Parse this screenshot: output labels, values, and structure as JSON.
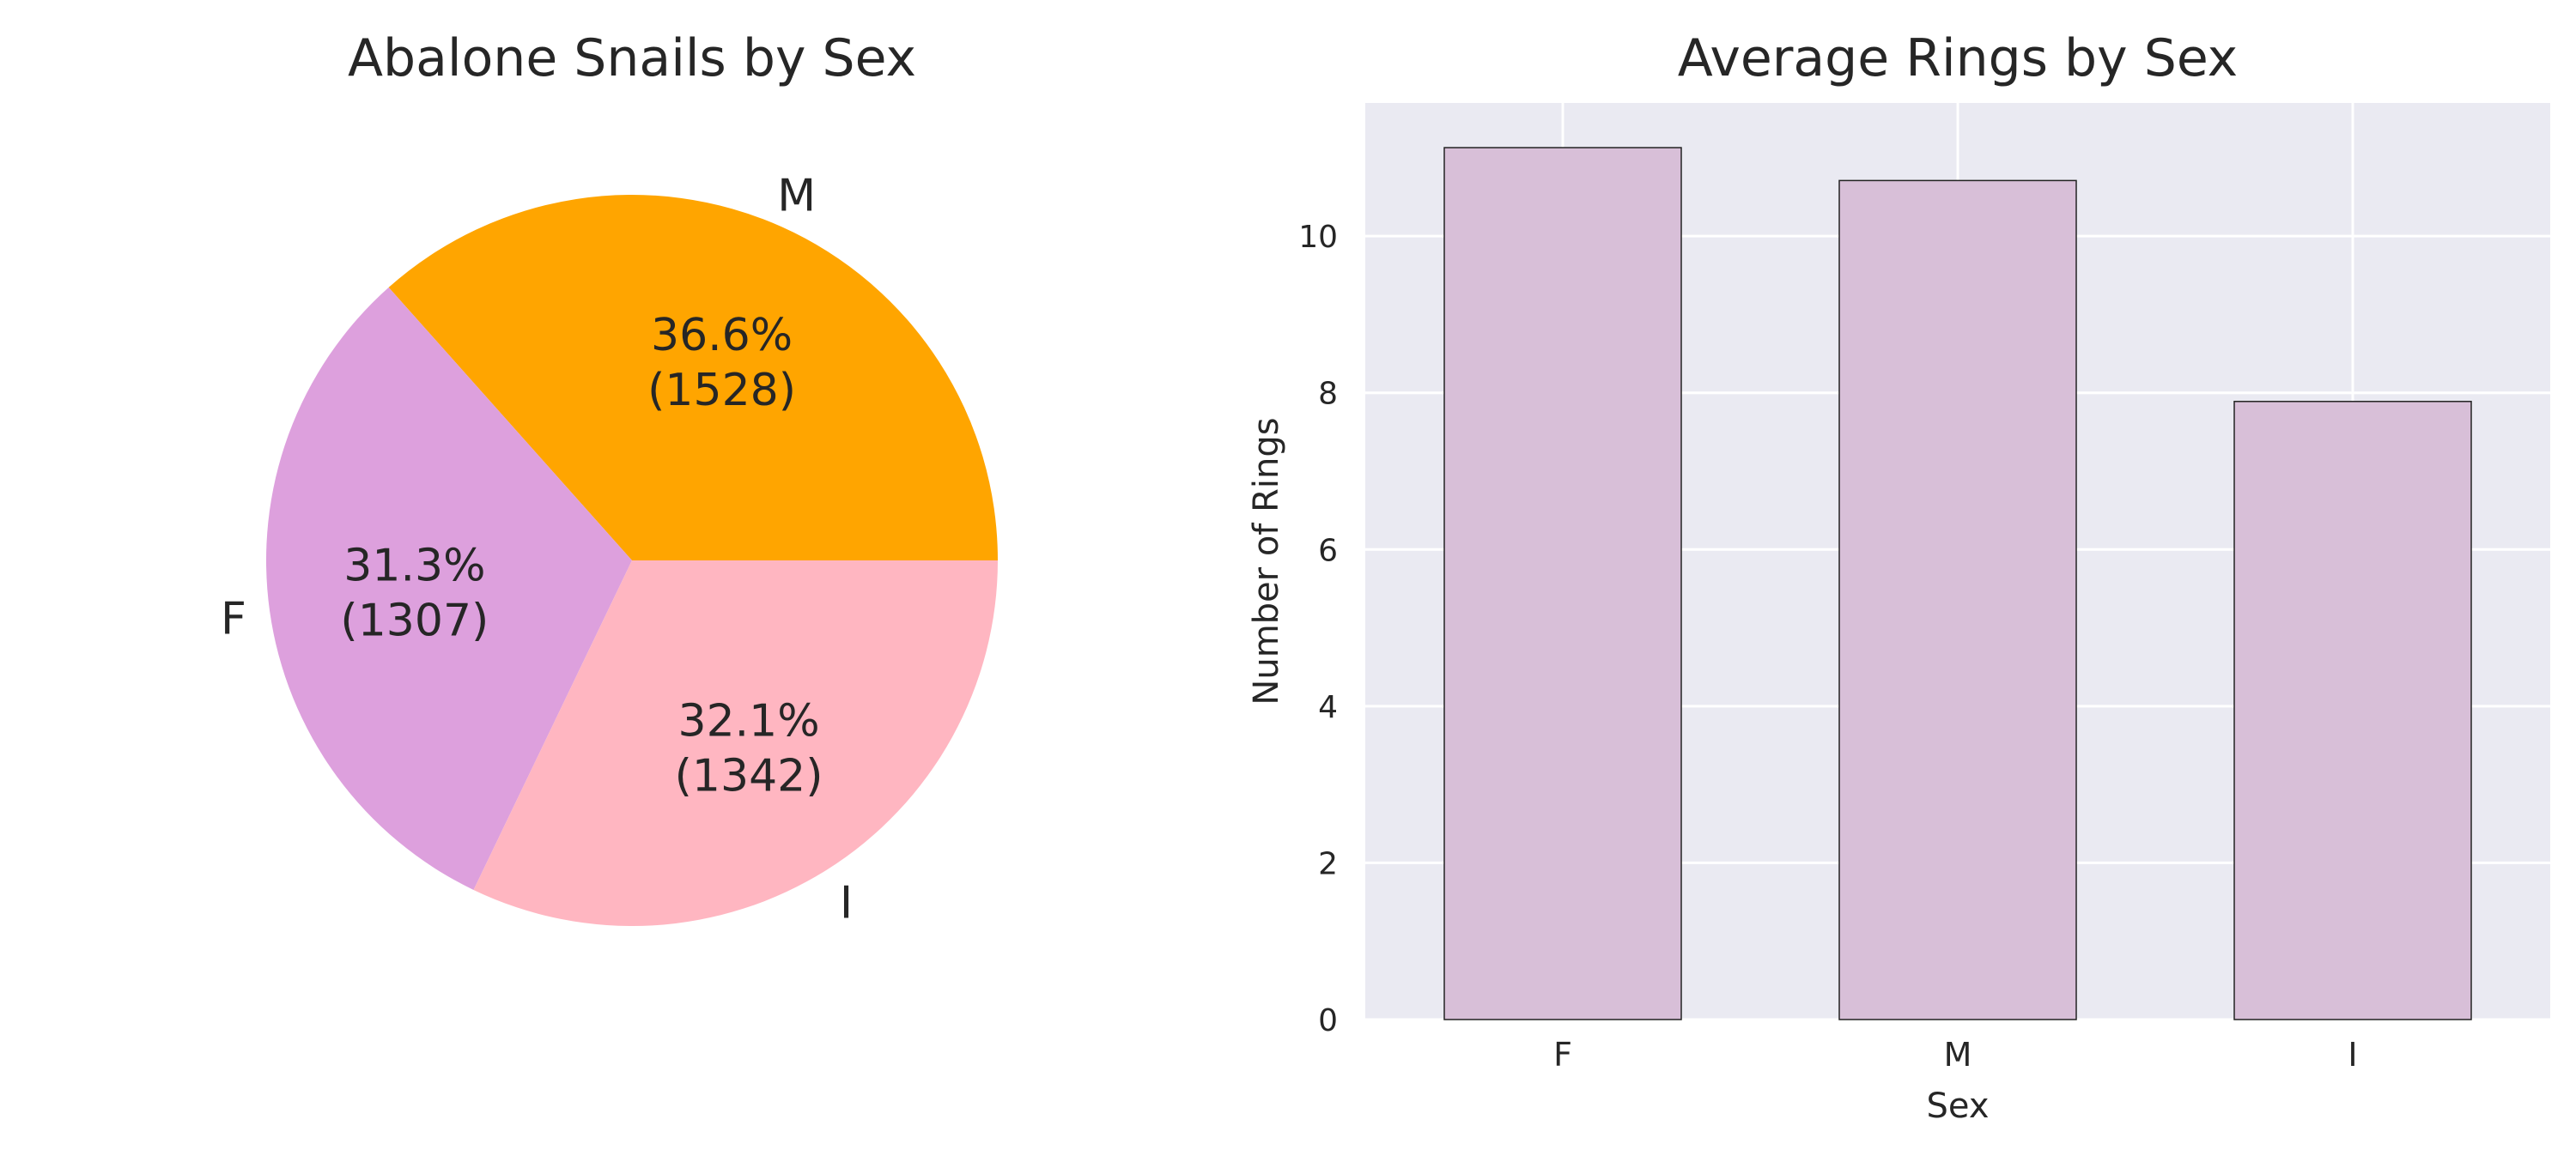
{
  "chart_data": [
    {
      "type": "pie",
      "title": "Abalone Snails by Sex",
      "slices": [
        {
          "label": "M",
          "value": 1528,
          "percent": 36.6,
          "percent_label": "36.6%",
          "count_label": "(1528)",
          "color": "#ffa500"
        },
        {
          "label": "F",
          "value": 1307,
          "percent": 31.3,
          "percent_label": "31.3%",
          "count_label": "(1307)",
          "color": "#dda0dd"
        },
        {
          "label": "I",
          "value": 1342,
          "percent": 32.1,
          "percent_label": "32.1%",
          "count_label": "(1342)",
          "color": "#ffb6c1"
        }
      ]
    },
    {
      "type": "bar",
      "title": "Average Rings by Sex",
      "xlabel": "Sex",
      "ylabel": "Number of Rings",
      "categories": [
        "F",
        "M",
        "I"
      ],
      "values": [
        11.13,
        10.71,
        7.89
      ],
      "ylim": [
        0,
        11.7
      ],
      "yticks": [
        0,
        2,
        4,
        6,
        8,
        10
      ],
      "grid": true,
      "bar_color": "#d8bfd8",
      "background": "#eaeaf2"
    }
  ]
}
